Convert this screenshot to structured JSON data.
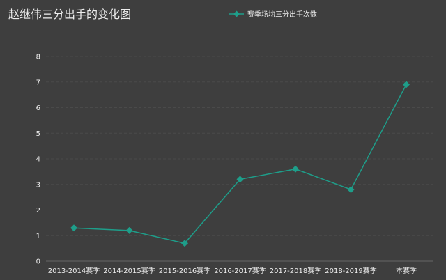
{
  "colors": {
    "background": "#3e3e3e",
    "series": "#1e9e8a",
    "text": "#eeeeee",
    "grid": "#4a4a4a"
  },
  "chart_data": {
    "type": "line",
    "title": "赵继伟三分出手的变化图",
    "xlabel": "",
    "ylabel": "",
    "categories": [
      "2013-2014赛季",
      "2014-2015赛季",
      "2015-2016赛季",
      "2016-2017赛季",
      "2017-2018赛季",
      "2018-2019赛季",
      "本赛季"
    ],
    "series": [
      {
        "name": "赛季场均三分出手次数",
        "values": [
          1.3,
          1.2,
          0.7,
          3.2,
          3.6,
          2.8,
          6.9
        ],
        "marker": "diamond"
      }
    ],
    "ylim": [
      0,
      8
    ],
    "yticks": [
      0,
      1,
      2,
      3,
      4,
      5,
      6,
      7,
      8
    ],
    "grid": true,
    "legend_position": "top-center"
  }
}
